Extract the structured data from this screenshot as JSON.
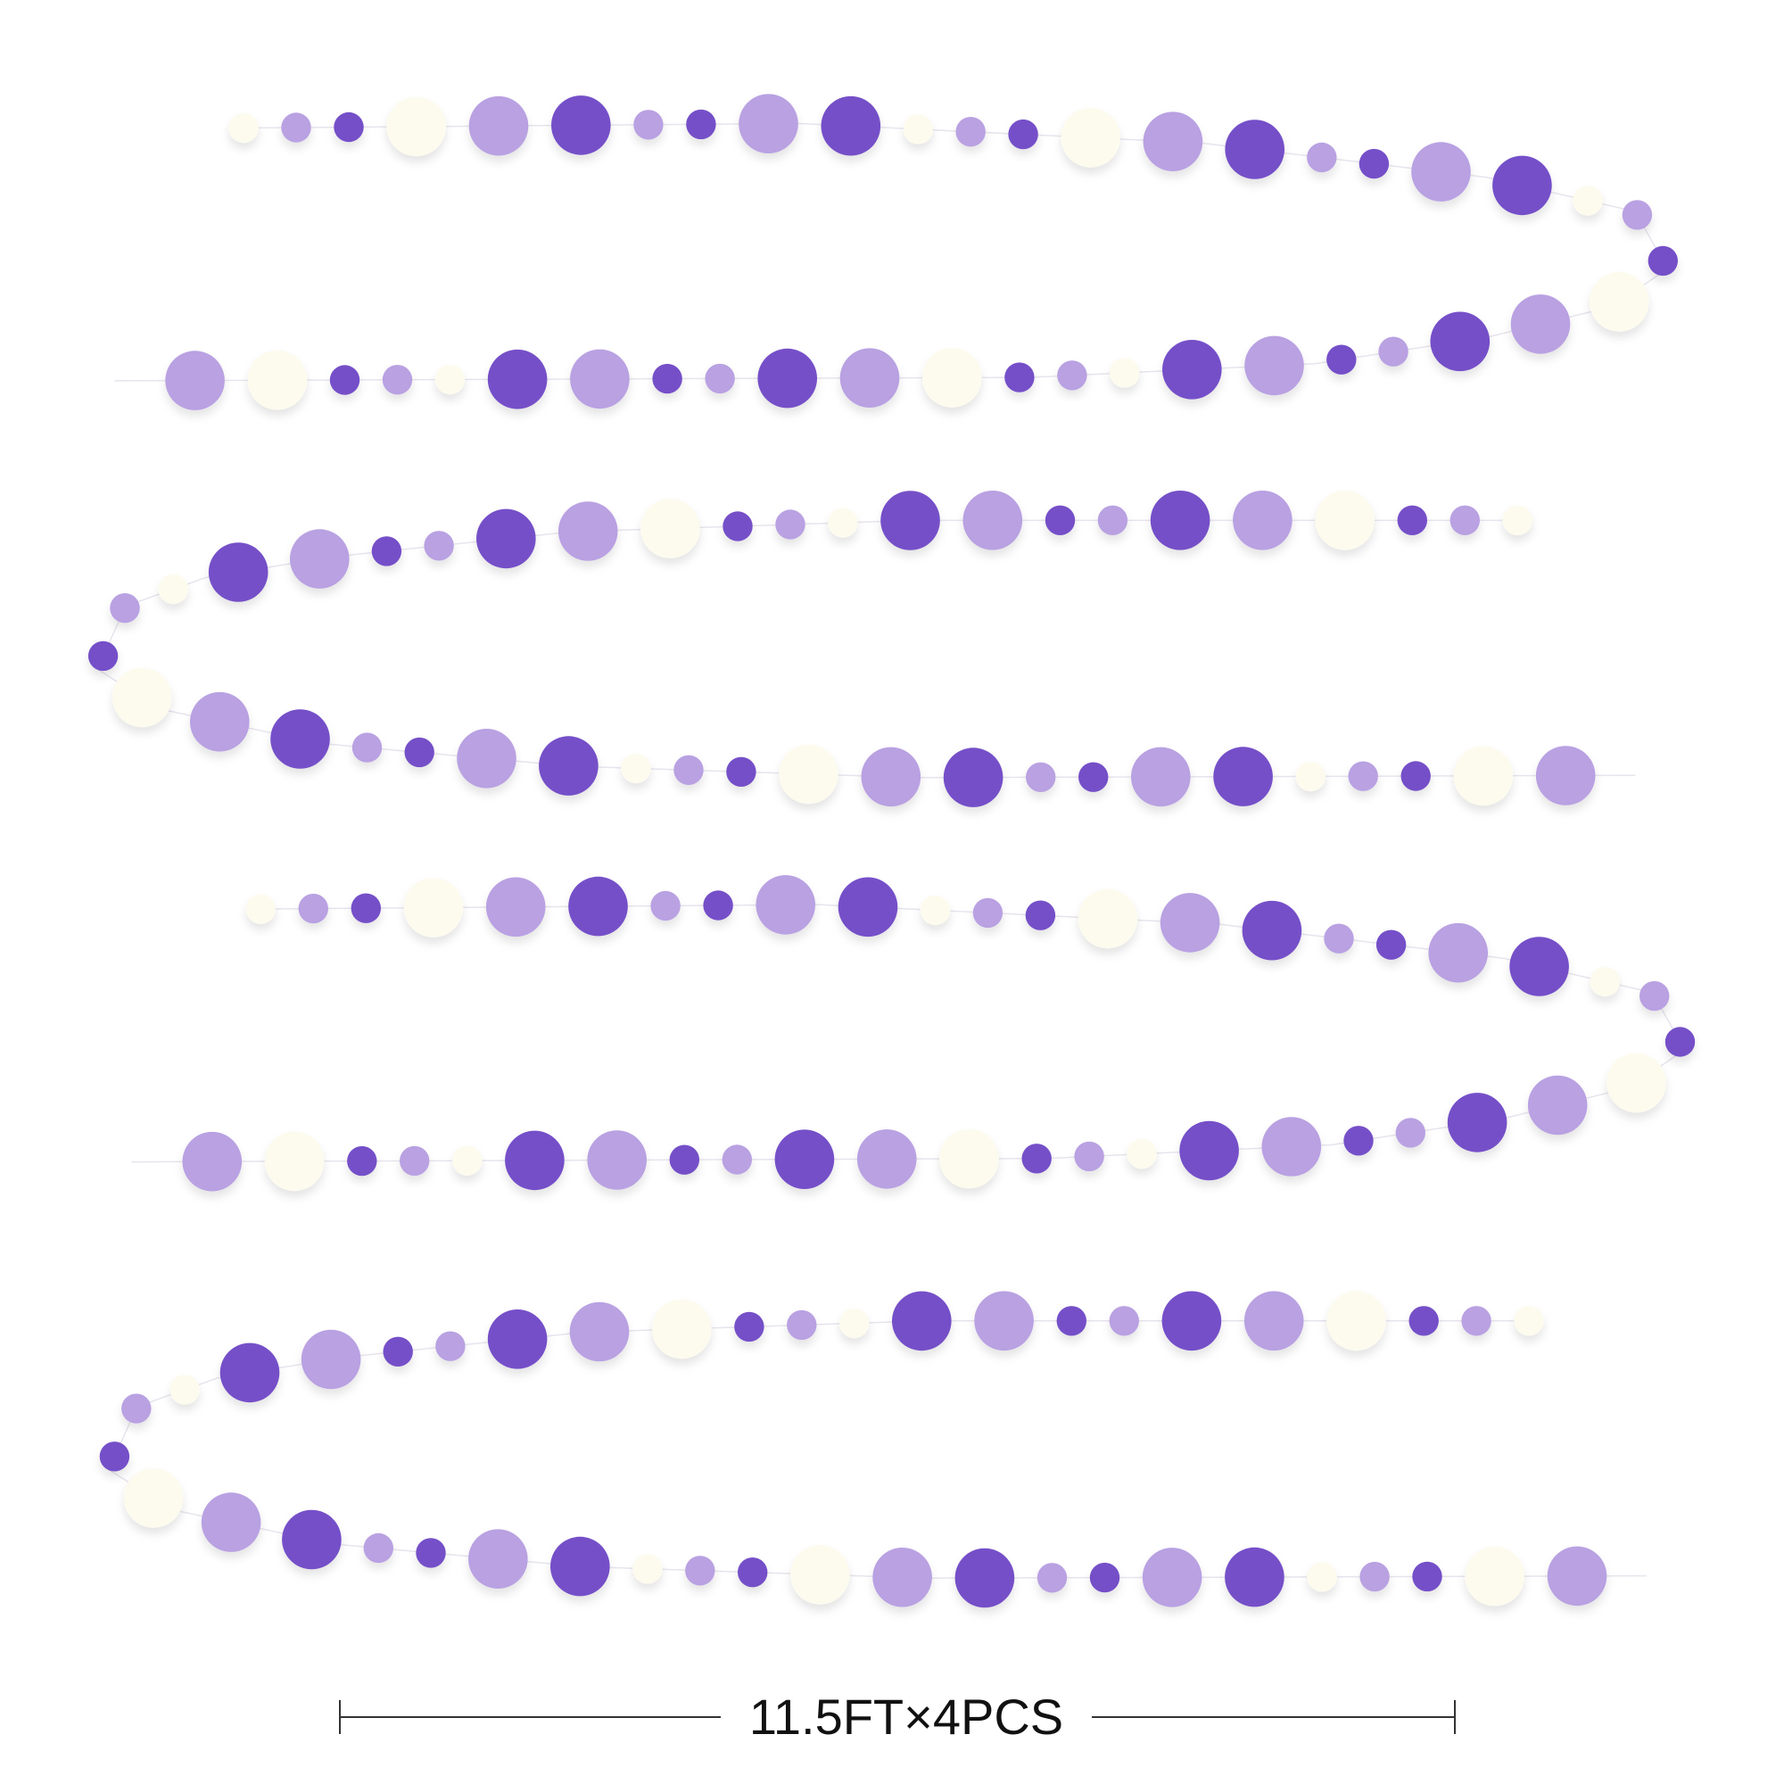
{
  "caption": "11.5FT×4PCS"
}
